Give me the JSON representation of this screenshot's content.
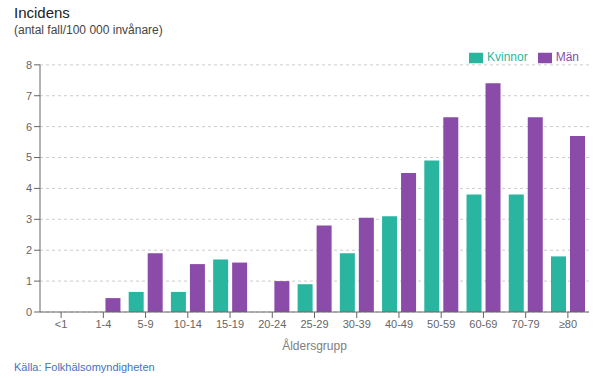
{
  "chart_data": {
    "type": "bar",
    "title": "Incidens",
    "subtitle": "(antal fall/100 000 invånare)",
    "xlabel": "Åldersgrupp",
    "categories": [
      "<1",
      "1-4",
      "5-9",
      "10-14",
      "15-19",
      "20-24",
      "25-29",
      "30-39",
      "40-49",
      "50-59",
      "60-69",
      "70-79",
      "≥80"
    ],
    "series": [
      {
        "name": "Kvinnor",
        "color": "#2ab5a0",
        "values": [
          0.0,
          0.0,
          0.65,
          0.65,
          1.7,
          0.0,
          0.9,
          1.9,
          3.1,
          4.9,
          3.8,
          3.8,
          1.8
        ]
      },
      {
        "name": "Män",
        "color": "#8B4BA8",
        "values": [
          0.0,
          0.45,
          1.9,
          1.55,
          1.6,
          1.0,
          2.8,
          3.05,
          4.5,
          6.3,
          7.4,
          6.3,
          5.7
        ]
      }
    ],
    "ylim": [
      0,
      8
    ],
    "yticks": [
      0,
      1,
      2,
      3,
      4,
      5,
      6,
      7,
      8
    ],
    "grid": true,
    "legend": "top",
    "annotations": [
      "Källa: Folkhälsomyndigheten"
    ]
  }
}
